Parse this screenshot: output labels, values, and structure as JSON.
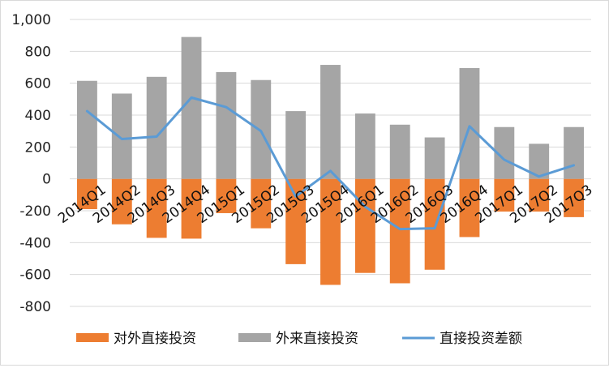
{
  "chart_data": {
    "type": "bar",
    "categories": [
      "2014Q1",
      "2014Q2",
      "2014Q3",
      "2014Q4",
      "2015Q1",
      "2015Q2",
      "2015Q3",
      "2015Q4",
      "2016Q1",
      "2016Q2",
      "2016Q3",
      "2016Q4",
      "2017Q1",
      "2017Q2",
      "2017Q3"
    ],
    "ylim": [
      -800,
      1000
    ],
    "yticks": [
      1000,
      800,
      600,
      400,
      200,
      0,
      -200,
      -400,
      -600,
      -800
    ],
    "ytick_labels": [
      "1,000",
      "800",
      "600",
      "400",
      "200",
      "0",
      "-200",
      "-400",
      "-600",
      "-800"
    ],
    "grid": true,
    "legend_position": "bottom",
    "stacked": true,
    "series": [
      {
        "name": "对外直接投资",
        "type": "bar",
        "color": "#ed7d31",
        "values": [
          -190,
          -285,
          -370,
          -375,
          -215,
          -310,
          -535,
          -665,
          -590,
          -655,
          -570,
          -365,
          -205,
          -205,
          -240
        ]
      },
      {
        "name": "外来直接投资",
        "type": "bar",
        "color": "#a5a5a5",
        "values": [
          615,
          535,
          640,
          890,
          670,
          620,
          425,
          715,
          410,
          340,
          260,
          695,
          325,
          220,
          325
        ]
      },
      {
        "name": "直接投资差额",
        "type": "line",
        "color": "#5b9bd5",
        "values": [
          425,
          250,
          265,
          510,
          450,
          300,
          -110,
          50,
          -175,
          -315,
          -310,
          330,
          120,
          15,
          85
        ]
      }
    ]
  }
}
